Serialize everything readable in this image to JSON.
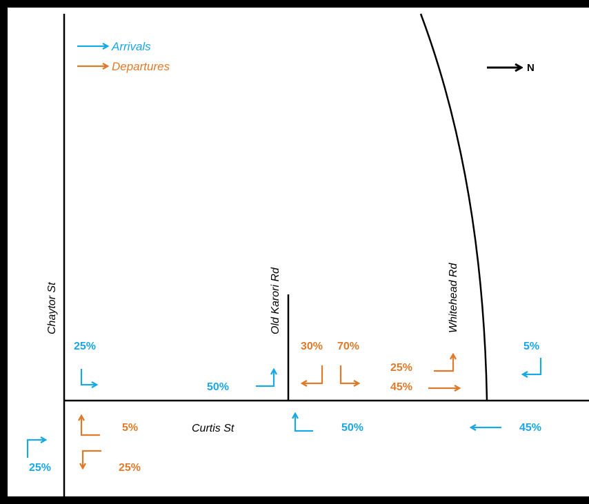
{
  "colors": {
    "arrivals": "#1aa7e6",
    "departures": "#e07a2a",
    "road": "#000000"
  },
  "legend": {
    "arrivals": "Arrivals",
    "departures": "Departures"
  },
  "north_label": "N",
  "streets": {
    "chaytor": "Chaytor St",
    "old_karori": "Old Karori Rd",
    "whitehead": "Whitehead Rd",
    "curtis": "Curtis  St"
  },
  "percentages": {
    "chaytor_in_turn": "25%",
    "bottom_left_in": "25%",
    "curtis_depart_5": "5%",
    "curtis_depart_25": "25%",
    "old_karori_in": "50%",
    "old_karori_out_30": "30%",
    "old_karori_out_70": "70%",
    "curtis_in_50": "50%",
    "whitehead_out_25": "25%",
    "whitehead_out_45": "45%",
    "whitehead_in_5": "5%",
    "curtis_in_45": "45%"
  }
}
